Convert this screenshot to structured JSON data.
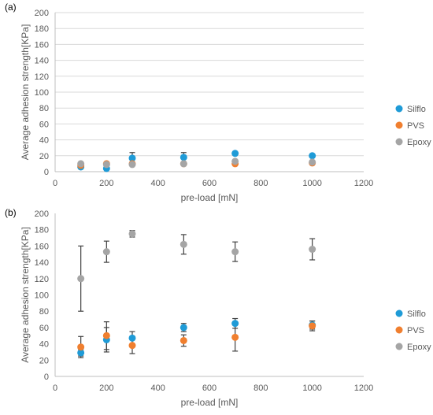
{
  "chart_data": [
    {
      "type": "scatter",
      "panel_label": "(a)",
      "xlabel": "pre-load [mN]",
      "ylabel": "Average adhesion strength[KPa]",
      "xlim": [
        0,
        1200
      ],
      "ylim": [
        0,
        200
      ],
      "xticks": [
        0,
        200,
        400,
        600,
        800,
        1000,
        1200
      ],
      "yticks": [
        0,
        20,
        40,
        60,
        80,
        100,
        120,
        140,
        160,
        180,
        200
      ],
      "grid": "horizontal",
      "legend_position": "right",
      "series": [
        {
          "name": "Silflo",
          "color": "#1f9bd7",
          "points": [
            {
              "x": 100,
              "y": 6,
              "err": 0
            },
            {
              "x": 200,
              "y": 4,
              "err": 0
            },
            {
              "x": 300,
              "y": 17,
              "err": 7
            },
            {
              "x": 500,
              "y": 18,
              "err": 6
            },
            {
              "x": 700,
              "y": 23,
              "err": 0
            },
            {
              "x": 1000,
              "y": 20,
              "err": 0
            }
          ]
        },
        {
          "name": "PVS",
          "color": "#f07f2f",
          "points": [
            {
              "x": 100,
              "y": 8,
              "err": 0
            },
            {
              "x": 200,
              "y": 10,
              "err": 0
            },
            {
              "x": 300,
              "y": 10,
              "err": 0
            },
            {
              "x": 500,
              "y": 10,
              "err": 0
            },
            {
              "x": 700,
              "y": 10,
              "err": 0
            },
            {
              "x": 1000,
              "y": 11,
              "err": 0
            }
          ]
        },
        {
          "name": "Epoxy",
          "color": "#a5a5a5",
          "points": [
            {
              "x": 100,
              "y": 10,
              "err": 0
            },
            {
              "x": 200,
              "y": 9,
              "err": 0
            },
            {
              "x": 300,
              "y": 9,
              "err": 0
            },
            {
              "x": 500,
              "y": 10,
              "err": 0
            },
            {
              "x": 700,
              "y": 13,
              "err": 0
            },
            {
              "x": 1000,
              "y": 12,
              "err": 0
            }
          ]
        }
      ]
    },
    {
      "type": "scatter",
      "panel_label": "(b)",
      "xlabel": "pre-load [mN]",
      "ylabel": "Average adhesion strength[KPa]",
      "xlim": [
        0,
        1200
      ],
      "ylim": [
        0,
        200
      ],
      "xticks": [
        0,
        200,
        400,
        600,
        800,
        1000,
        1200
      ],
      "yticks": [
        0,
        20,
        40,
        60,
        80,
        100,
        120,
        140,
        160,
        180,
        200
      ],
      "grid": "none",
      "legend_position": "right",
      "series": [
        {
          "name": "Silflo",
          "color": "#1f9bd7",
          "points": [
            {
              "x": 100,
              "y": 29,
              "err": 4
            },
            {
              "x": 200,
              "y": 45,
              "err": 15
            },
            {
              "x": 300,
              "y": 47,
              "err": 8
            },
            {
              "x": 500,
              "y": 60,
              "err": 5
            },
            {
              "x": 700,
              "y": 65,
              "err": 6
            },
            {
              "x": 1000,
              "y": 63,
              "err": 5
            }
          ]
        },
        {
          "name": "PVS",
          "color": "#f07f2f",
          "points": [
            {
              "x": 100,
              "y": 36,
              "err": 13
            },
            {
              "x": 200,
              "y": 50,
              "err": 17
            },
            {
              "x": 300,
              "y": 38,
              "err": 10
            },
            {
              "x": 500,
              "y": 44,
              "err": 7
            },
            {
              "x": 700,
              "y": 48,
              "err": 17
            },
            {
              "x": 1000,
              "y": 62,
              "err": 6
            }
          ]
        },
        {
          "name": "Epoxy",
          "color": "#a5a5a5",
          "points": [
            {
              "x": 100,
              "y": 120,
              "err": 40
            },
            {
              "x": 200,
              "y": 153,
              "err": 13
            },
            {
              "x": 300,
              "y": 175,
              "err": 4
            },
            {
              "x": 500,
              "y": 162,
              "err": 12
            },
            {
              "x": 700,
              "y": 153,
              "err": 12
            },
            {
              "x": 1000,
              "y": 156,
              "err": 13
            }
          ]
        }
      ]
    }
  ]
}
